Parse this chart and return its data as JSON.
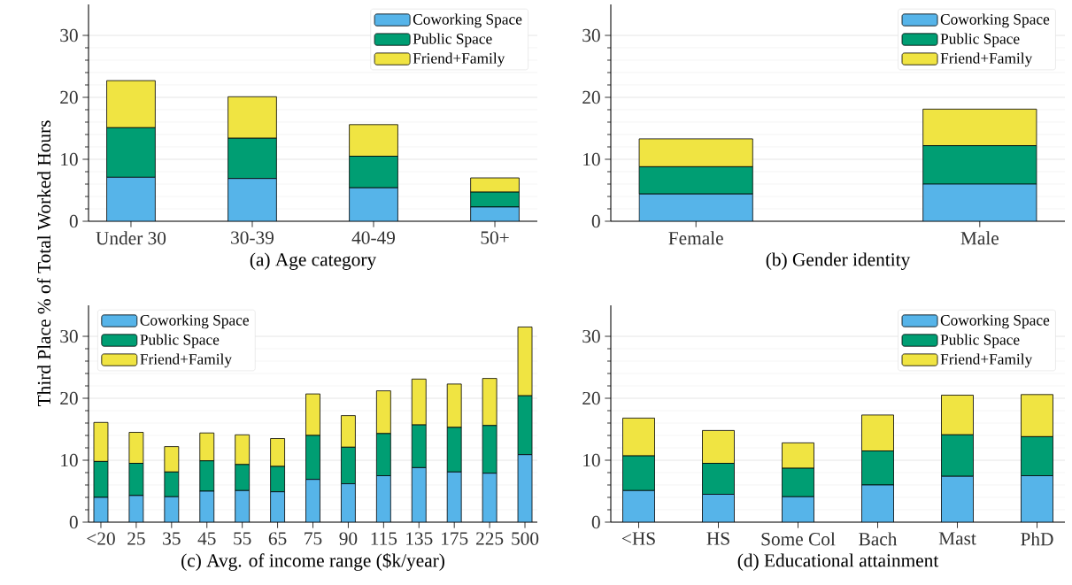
{
  "chart_data": [
    {
      "type": "bar",
      "stacked": true,
      "ylabel": "Third Place % of Total Worked Hours",
      "xlabel": "(a) Age category",
      "categories": [
        "Under 30",
        "30-39",
        "40-49",
        "50+"
      ],
      "ylim": [
        0,
        35
      ],
      "yticks": [
        0,
        10,
        20,
        30
      ],
      "grid": "y",
      "legend": "top right",
      "series": [
        {
          "name": "Coworking Space",
          "color": "#56b4e9",
          "values": [
            7.1,
            6.9,
            5.4,
            2.3
          ]
        },
        {
          "name": "Public Space",
          "color": "#009e73",
          "values": [
            8.0,
            6.5,
            5.1,
            2.4
          ]
        },
        {
          "name": "Friend+Family",
          "color": "#f0e442",
          "values": [
            7.6,
            6.7,
            5.1,
            2.3
          ]
        }
      ]
    },
    {
      "type": "bar",
      "stacked": true,
      "xlabel": "(b) Gender identity",
      "categories": [
        "Female",
        "Male"
      ],
      "ylim": [
        0,
        35
      ],
      "yticks": [
        0,
        10,
        20,
        30
      ],
      "grid": "y",
      "legend": "top right",
      "series": [
        {
          "name": "Coworking Space",
          "color": "#56b4e9",
          "values": [
            4.4,
            6.0
          ]
        },
        {
          "name": "Public Space",
          "color": "#009e73",
          "values": [
            4.4,
            6.2
          ]
        },
        {
          "name": "Friend+Family",
          "color": "#f0e442",
          "values": [
            4.5,
            5.9
          ]
        }
      ]
    },
    {
      "type": "bar",
      "stacked": true,
      "xlabel": "(c) Avg. of income range ($k/year)",
      "categories": [
        "<20",
        "25",
        "35",
        "45",
        "55",
        "65",
        "75",
        "90",
        "115",
        "135",
        "175",
        "225",
        "500"
      ],
      "ylim": [
        0,
        35
      ],
      "yticks": [
        0,
        10,
        20,
        30
      ],
      "grid": "y",
      "legend": "top left",
      "series": [
        {
          "name": "Coworking Space",
          "color": "#56b4e9",
          "values": [
            4.0,
            4.3,
            4.1,
            5.0,
            5.1,
            4.9,
            6.9,
            6.2,
            7.5,
            8.8,
            8.1,
            7.9,
            10.9
          ]
        },
        {
          "name": "Public Space",
          "color": "#009e73",
          "values": [
            5.8,
            5.2,
            4.0,
            4.9,
            4.2,
            4.1,
            7.1,
            5.9,
            6.8,
            6.9,
            7.2,
            7.7,
            9.5
          ]
        },
        {
          "name": "Friend+Family",
          "color": "#f0e442",
          "values": [
            6.3,
            5.0,
            4.1,
            4.5,
            4.8,
            4.5,
            6.7,
            5.1,
            6.9,
            7.4,
            7.0,
            7.6,
            11.1
          ]
        }
      ]
    },
    {
      "type": "bar",
      "stacked": true,
      "xlabel": "(d) Educational attainment",
      "categories": [
        "<HS",
        "HS",
        "Some Col",
        "Bach",
        "Mast",
        "PhD"
      ],
      "ylim": [
        0,
        35
      ],
      "yticks": [
        0,
        10,
        20,
        30
      ],
      "grid": "y",
      "legend": "top right",
      "series": [
        {
          "name": "Coworking Space",
          "color": "#56b4e9",
          "values": [
            5.1,
            4.5,
            4.1,
            6.0,
            7.4,
            7.5
          ]
        },
        {
          "name": "Public Space",
          "color": "#009e73",
          "values": [
            5.6,
            5.0,
            4.6,
            5.5,
            6.7,
            6.3
          ]
        },
        {
          "name": "Friend+Family",
          "color": "#f0e442",
          "values": [
            6.1,
            5.3,
            4.1,
            5.8,
            6.4,
            6.8
          ]
        }
      ]
    }
  ]
}
